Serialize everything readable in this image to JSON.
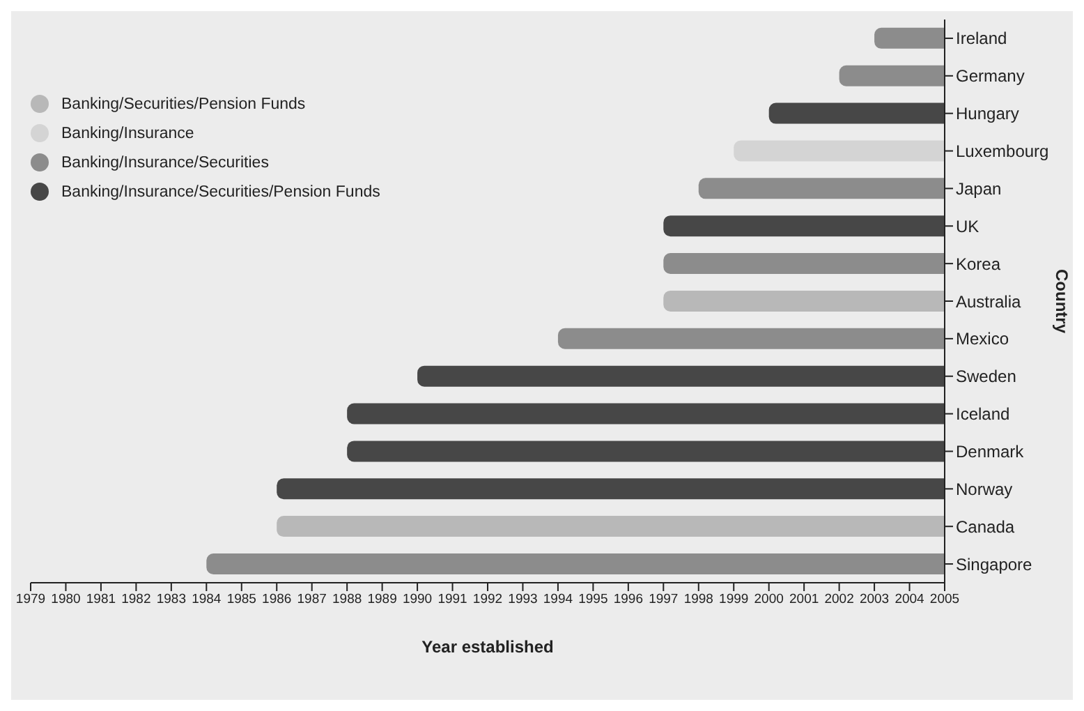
{
  "chart_data": {
    "type": "bar",
    "orientation": "horizontal",
    "xlabel": "Year established",
    "ylabel": "Country",
    "categories": [
      "Ireland",
      "Germany",
      "Hungary",
      "Luxembourg",
      "Japan",
      "UK",
      "Korea",
      "Australia",
      "Mexico",
      "Sweden",
      "Iceland",
      "Denmark",
      "Norway",
      "Canada",
      "Singapore"
    ],
    "series": [
      {
        "name": "Banking/Securities/Pension Funds",
        "color": "#b8b8b8",
        "base": [
          null,
          null,
          null,
          null,
          null,
          null,
          null,
          1997,
          null,
          null,
          null,
          null,
          null,
          1986,
          null
        ],
        "values": [
          null,
          null,
          null,
          null,
          null,
          null,
          null,
          8,
          null,
          null,
          null,
          null,
          null,
          19,
          null
        ]
      },
      {
        "name": "Banking/Insurance",
        "color": "#d4d4d4",
        "base": [
          null,
          null,
          null,
          1999,
          null,
          null,
          null,
          null,
          null,
          null,
          null,
          null,
          null,
          null,
          null
        ],
        "values": [
          null,
          null,
          null,
          6,
          null,
          null,
          null,
          null,
          null,
          null,
          null,
          null,
          null,
          null,
          null
        ]
      },
      {
        "name": "Banking/Insurance/Securities",
        "color": "#8c8c8c",
        "base": [
          2003,
          2002,
          null,
          null,
          1998,
          null,
          1997,
          null,
          1994,
          null,
          null,
          null,
          null,
          null,
          1984
        ],
        "values": [
          2,
          3,
          null,
          null,
          7,
          null,
          8,
          null,
          11,
          null,
          null,
          null,
          null,
          null,
          21
        ]
      },
      {
        "name": "Banking/Insurance/Securities/Pension Funds",
        "color": "#474747",
        "base": [
          null,
          null,
          2000,
          null,
          null,
          1997,
          null,
          null,
          null,
          1990,
          1988,
          1988,
          1986,
          null,
          null
        ],
        "values": [
          null,
          null,
          5,
          null,
          null,
          8,
          null,
          null,
          null,
          15,
          17,
          17,
          19,
          null,
          null
        ]
      }
    ],
    "xlim": [
      1979,
      2005
    ],
    "xticks": [
      1979,
      1980,
      1981,
      1982,
      1983,
      1984,
      1985,
      1986,
      1987,
      1988,
      1989,
      1990,
      1991,
      1992,
      1993,
      1994,
      1995,
      1996,
      1997,
      1998,
      1999,
      2000,
      2001,
      2002,
      2003,
      2004,
      2005
    ],
    "grid": false,
    "legend": "top left"
  }
}
